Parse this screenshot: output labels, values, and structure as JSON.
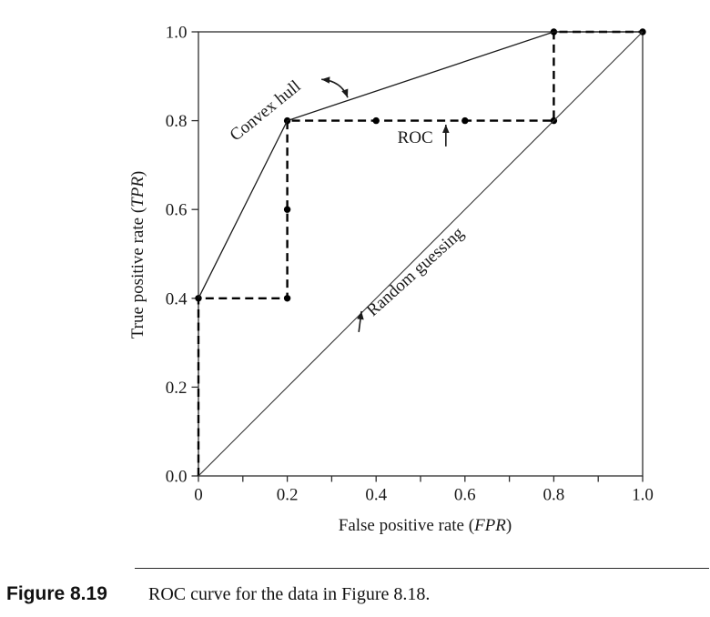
{
  "page": {
    "background": "#ffffff",
    "ink_color": "#1a1a1a"
  },
  "caption": {
    "label": "Figure 8.19",
    "text": "ROC curve for the data in Figure 8.18."
  },
  "chart_data": {
    "type": "line",
    "title": "",
    "xlabel": "False positive rate (FPR)",
    "ylabel": "True positive rate (TPR)",
    "xlabel_parts": [
      "False positive rate (",
      "FPR",
      ")"
    ],
    "ylabel_parts": [
      "True positive rate (",
      "TPR",
      ")"
    ],
    "xlim": [
      0,
      1
    ],
    "ylim": [
      0,
      1
    ],
    "grid": false,
    "legend": "none",
    "x_minor_ticks": [
      0,
      0.1,
      0.2,
      0.3,
      0.4,
      0.5,
      0.6,
      0.7,
      0.8,
      0.9,
      1.0
    ],
    "x_tick_labels": [
      {
        "v": 0.0,
        "label": "0"
      },
      {
        "v": 0.2,
        "label": "0.2"
      },
      {
        "v": 0.4,
        "label": "0.4"
      },
      {
        "v": 0.6,
        "label": "0.6"
      },
      {
        "v": 0.8,
        "label": "0.8"
      },
      {
        "v": 1.0,
        "label": "1.0"
      }
    ],
    "y_ticks": [
      {
        "v": 0.0,
        "label": "0.0"
      },
      {
        "v": 0.2,
        "label": "0.2"
      },
      {
        "v": 0.4,
        "label": "0.4"
      },
      {
        "v": 0.6,
        "label": "0.6"
      },
      {
        "v": 0.8,
        "label": "0.8"
      },
      {
        "v": 1.0,
        "label": "1.0"
      }
    ],
    "series": [
      {
        "name": "ROC curve",
        "line_style": "dashed",
        "color": "#000000",
        "stroke_width": 2.4,
        "points": [
          [
            0,
            0
          ],
          [
            0,
            0.4
          ],
          [
            0.2,
            0.4
          ],
          [
            0.2,
            0.6
          ],
          [
            0.2,
            0.8
          ],
          [
            0.4,
            0.8
          ],
          [
            0.6,
            0.8
          ],
          [
            0.8,
            0.8
          ],
          [
            0.8,
            1.0
          ],
          [
            1.0,
            1.0
          ]
        ],
        "markers": [
          [
            0,
            0.4
          ],
          [
            0.2,
            0.4
          ],
          [
            0.2,
            0.6
          ],
          [
            0.2,
            0.8
          ],
          [
            0.4,
            0.8
          ],
          [
            0.6,
            0.8
          ],
          [
            0.8,
            0.8
          ],
          [
            0.8,
            1.0
          ],
          [
            1.0,
            1.0
          ]
        ]
      },
      {
        "name": "Convex hull",
        "line_style": "solid",
        "color": "#1a1a1a",
        "stroke_width": 1.3,
        "points": [
          [
            0,
            0.4
          ],
          [
            0.2,
            0.8
          ],
          [
            0.8,
            1.0
          ],
          [
            1.0,
            1.0
          ]
        ],
        "markers": []
      },
      {
        "name": "Random guessing",
        "line_style": "solid",
        "color": "#333333",
        "stroke_width": 1.1,
        "points": [
          [
            0,
            0
          ],
          [
            1,
            1
          ]
        ],
        "markers": []
      }
    ],
    "marker": {
      "shape": "dot",
      "radius": 3.7,
      "color": "#000000"
    },
    "annotations": [
      {
        "id": "convex-hull-label",
        "text": "Convex hull",
        "x": 0.158,
        "y": 0.813,
        "rotation": -39,
        "font_size": 19
      },
      {
        "id": "roc-label",
        "text": "ROC",
        "x": 0.488,
        "y": 0.75,
        "rotation": 0,
        "font_size": 19
      },
      {
        "id": "random-guessing-label",
        "text": "Random guessing",
        "x": 0.496,
        "y": 0.451,
        "rotation": -42,
        "font_size": 19
      }
    ],
    "arrows": [
      {
        "id": "roc-arrow",
        "from": [
          0.557,
          0.742
        ],
        "to": [
          0.557,
          0.791
        ],
        "double": false
      },
      {
        "id": "random-guessing-arrow",
        "from": [
          0.361,
          0.324
        ],
        "to": [
          0.367,
          0.371
        ],
        "double": false
      },
      {
        "id": "convex-hull-arrow",
        "from": [
          0.277,
          0.893
        ],
        "to": [
          0.336,
          0.852
        ],
        "ctrl": [
          0.322,
          0.889
        ],
        "double": true
      }
    ]
  }
}
